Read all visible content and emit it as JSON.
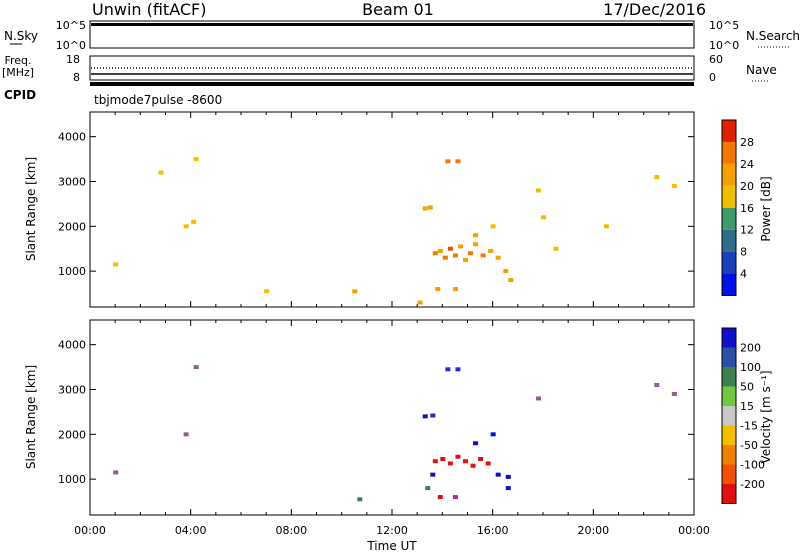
{
  "header": {
    "title_left": "Unwin (fitACF)",
    "title_center": "Beam 01",
    "title_right": "17/Dec/2016"
  },
  "status_panels": {
    "nsky_label": "N.Sky",
    "nsky_ticks": [
      "10^5",
      "10^0"
    ],
    "nsearch_label": "N.Search",
    "nsearch_ticks": [
      "10^5",
      "10^0"
    ],
    "freq_label_line1": "Freq.",
    "freq_label_line2": "[MHz]",
    "freq_ticks": [
      "18",
      "8"
    ],
    "nave_label": "Nave",
    "nave_ticks": [
      "60",
      "0"
    ],
    "cpid_label": "CPID",
    "cpid_text": "tbjmode7pulse  -8600"
  },
  "chart_data": [
    {
      "type": "heatmap",
      "name": "power",
      "ylabel": "Slant Range [km]",
      "yticks": [
        1000,
        2000,
        3000,
        4000
      ],
      "ylim": [
        200,
        4550
      ],
      "xlim": [
        0,
        24
      ],
      "colorbar": {
        "label": "Power [dB]",
        "ticks": [
          "4",
          "8",
          "12",
          "16",
          "20",
          "24",
          "28"
        ],
        "colors": [
          "#0010e8",
          "#1a3fb8",
          "#2f6e8a",
          "#3f9a6a",
          "#f0c000",
          "#f5a000",
          "#f07800",
          "#e02000"
        ]
      },
      "cells": [
        {
          "t": 13.3,
          "r": 2400,
          "c": "#f5a000"
        },
        {
          "t": 13.5,
          "r": 2420,
          "c": "#f5a000"
        },
        {
          "t": 13.7,
          "r": 1400,
          "c": "#f07800"
        },
        {
          "t": 13.9,
          "r": 1450,
          "c": "#f5a000"
        },
        {
          "t": 14.1,
          "r": 1300,
          "c": "#f07800"
        },
        {
          "t": 14.3,
          "r": 1500,
          "c": "#e85000"
        },
        {
          "t": 14.5,
          "r": 1350,
          "c": "#f07800"
        },
        {
          "t": 14.7,
          "r": 1550,
          "c": "#f5a000"
        },
        {
          "t": 14.9,
          "r": 1250,
          "c": "#f5a000"
        },
        {
          "t": 15.1,
          "r": 1400,
          "c": "#f07800"
        },
        {
          "t": 15.3,
          "r": 1600,
          "c": "#f5a000"
        },
        {
          "t": 15.6,
          "r": 1350,
          "c": "#f07800"
        },
        {
          "t": 15.9,
          "r": 1450,
          "c": "#f5a000"
        },
        {
          "t": 16.2,
          "r": 1300,
          "c": "#f5a000"
        },
        {
          "t": 16.5,
          "r": 1000,
          "c": "#f5a000"
        },
        {
          "t": 16.7,
          "r": 800,
          "c": "#f5a000"
        },
        {
          "t": 14.2,
          "r": 3450,
          "c": "#f07800"
        },
        {
          "t": 14.6,
          "r": 3450,
          "c": "#f07800"
        },
        {
          "t": 13.8,
          "r": 600,
          "c": "#f5a000"
        },
        {
          "t": 14.5,
          "r": 600,
          "c": "#f5a000"
        },
        {
          "t": 15.3,
          "r": 1800,
          "c": "#f5a000"
        },
        {
          "t": 16.0,
          "r": 2000,
          "c": "#f0c000"
        },
        {
          "t": 3.8,
          "r": 2000,
          "c": "#f0c000"
        },
        {
          "t": 4.1,
          "r": 2100,
          "c": "#f0c000"
        },
        {
          "t": 4.2,
          "r": 3500,
          "c": "#f0c000"
        },
        {
          "t": 17.8,
          "r": 2800,
          "c": "#f0c000"
        },
        {
          "t": 18.0,
          "r": 2200,
          "c": "#f0c000"
        },
        {
          "t": 22.5,
          "r": 3100,
          "c": "#f0c000"
        },
        {
          "t": 7.0,
          "r": 550,
          "c": "#f0c000"
        },
        {
          "t": 10.5,
          "r": 550,
          "c": "#f5a000"
        },
        {
          "t": 13.1,
          "r": 300,
          "c": "#f5a000"
        },
        {
          "t": 18.5,
          "r": 1500,
          "c": "#f0c000"
        },
        {
          "t": 1.0,
          "r": 1150,
          "c": "#f0c000"
        },
        {
          "t": 2.8,
          "r": 3200,
          "c": "#f0c000"
        },
        {
          "t": 20.5,
          "r": 2000,
          "c": "#f0c000"
        },
        {
          "t": 23.2,
          "r": 2900,
          "c": "#f0c000"
        }
      ]
    },
    {
      "type": "heatmap",
      "name": "velocity",
      "ylabel": "Slant Range [km]",
      "xlabel": "Time UT",
      "xticks": [
        "00:00",
        "04:00",
        "08:00",
        "12:00",
        "16:00",
        "20:00",
        "00:00"
      ],
      "yticks": [
        1000,
        2000,
        3000,
        4000
      ],
      "ylim": [
        200,
        4550
      ],
      "xlim": [
        0,
        24
      ],
      "colorbar": {
        "label": "Velocity [m s⁻¹]",
        "ticks": [
          "200",
          "100",
          "50",
          "15",
          "-15",
          "-50",
          "-100",
          "-200"
        ],
        "colors": [
          "#1010c8",
          "#2850a8",
          "#3c8050",
          "#70c840",
          "#c8c8c8",
          "#f0c000",
          "#f08000",
          "#f05000",
          "#e01010"
        ]
      },
      "cells": [
        {
          "t": 13.3,
          "r": 2400,
          "c": "#1010c8"
        },
        {
          "t": 13.6,
          "r": 2420,
          "c": "#2030d0"
        },
        {
          "t": 13.7,
          "r": 1400,
          "c": "#e01010"
        },
        {
          "t": 14.0,
          "r": 1450,
          "c": "#e01010"
        },
        {
          "t": 14.3,
          "r": 1350,
          "c": "#e01010"
        },
        {
          "t": 14.6,
          "r": 1500,
          "c": "#e01010"
        },
        {
          "t": 14.9,
          "r": 1400,
          "c": "#e01010"
        },
        {
          "t": 15.2,
          "r": 1300,
          "c": "#e01010"
        },
        {
          "t": 15.5,
          "r": 1450,
          "c": "#e01010"
        },
        {
          "t": 15.8,
          "r": 1350,
          "c": "#e01010"
        },
        {
          "t": 16.2,
          "r": 1100,
          "c": "#1010c8"
        },
        {
          "t": 16.6,
          "r": 1050,
          "c": "#1010c8"
        },
        {
          "t": 16.6,
          "r": 800,
          "c": "#1010c8"
        },
        {
          "t": 13.6,
          "r": 1100,
          "c": "#1010c8"
        },
        {
          "t": 14.2,
          "r": 3450,
          "c": "#2030d0"
        },
        {
          "t": 14.6,
          "r": 3450,
          "c": "#2030d0"
        },
        {
          "t": 13.9,
          "r": 600,
          "c": "#e01010"
        },
        {
          "t": 14.5,
          "r": 600,
          "c": "#c020a0"
        },
        {
          "t": 15.3,
          "r": 1800,
          "c": "#1010c8"
        },
        {
          "t": 16.0,
          "r": 2000,
          "c": "#1010c8"
        },
        {
          "t": 3.8,
          "r": 2000,
          "c": "#906090"
        },
        {
          "t": 4.2,
          "r": 3500,
          "c": "#906090"
        },
        {
          "t": 17.8,
          "r": 2800,
          "c": "#906090"
        },
        {
          "t": 22.5,
          "r": 3100,
          "c": "#906090"
        },
        {
          "t": 13.4,
          "r": 800,
          "c": "#3c8050"
        },
        {
          "t": 10.7,
          "r": 550,
          "c": "#3c8050"
        },
        {
          "t": 1.0,
          "r": 1150,
          "c": "#906090"
        },
        {
          "t": 23.2,
          "r": 2900,
          "c": "#906090"
        }
      ]
    }
  ]
}
